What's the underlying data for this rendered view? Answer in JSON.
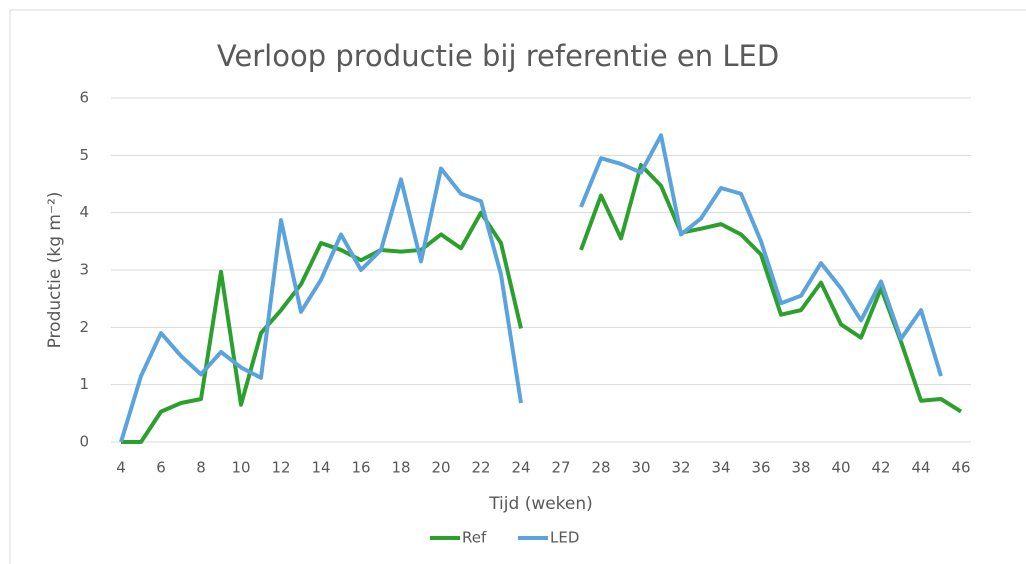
{
  "chart_data": {
    "type": "line",
    "title": "Verloop productie bij referentie en LED",
    "x_label": "Tijd (weken)",
    "y_label": "Productie (kg m⁻²)",
    "categories": [
      "4",
      null,
      "6",
      null,
      "8",
      null,
      "10",
      null,
      "12",
      null,
      "14",
      null,
      "16",
      null,
      "18",
      null,
      "20",
      null,
      "22",
      null,
      "24",
      null,
      "27",
      null,
      "28",
      null,
      "30",
      null,
      "32",
      null,
      "34",
      null,
      "36",
      null,
      "38",
      null,
      "40",
      null,
      "42",
      null,
      "44",
      null,
      "46"
    ],
    "series": [
      {
        "name": "Ref",
        "color": "#2ca02c",
        "values": [
          0,
          0,
          0.53,
          0.68,
          0.75,
          2.97,
          0.65,
          1.9,
          2.3,
          2.75,
          3.47,
          3.35,
          3.17,
          3.35,
          3.32,
          3.35,
          3.62,
          3.38,
          4.0,
          3.47,
          1.98,
          null,
          null,
          3.35,
          4.3,
          3.55,
          4.83,
          4.47,
          3.65,
          3.72,
          3.8,
          3.62,
          3.27,
          2.22,
          2.3,
          2.78,
          2.05,
          1.82,
          2.68,
          1.75,
          0.72,
          0.75,
          0.53
        ]
      },
      {
        "name": "LED",
        "color": "#5ba3dd",
        "values": [
          0,
          1.15,
          1.9,
          1.5,
          1.18,
          1.57,
          1.3,
          1.12,
          3.87,
          2.27,
          2.83,
          3.62,
          3.0,
          3.35,
          4.58,
          3.15,
          4.77,
          4.33,
          4.2,
          2.92,
          0.68,
          null,
          null,
          4.1,
          4.95,
          4.85,
          4.7,
          5.35,
          3.62,
          3.9,
          4.43,
          4.33,
          3.5,
          2.42,
          2.55,
          3.12,
          2.68,
          2.12,
          2.8,
          1.8,
          2.3,
          1.15,
          null
        ]
      }
    ],
    "ylim": [
      0,
      6
    ],
    "yticks": [
      0,
      1,
      2,
      3,
      4,
      5,
      6
    ],
    "grid": true,
    "legend": "bottom"
  }
}
